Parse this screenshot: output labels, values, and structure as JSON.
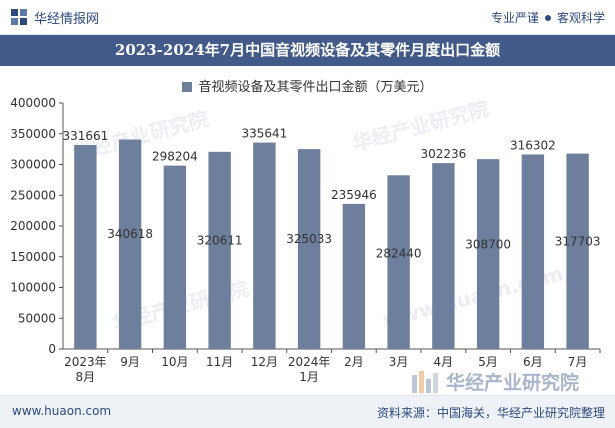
{
  "header": {
    "brand": "华经情报网",
    "tagline_left": "专业严谨",
    "tagline_right": "客观科学"
  },
  "title": "2023-2024年7月中国音视频设备及其零件月度出口金额",
  "footer": {
    "url": "www.huaon.com",
    "source": "资料来源：中国海关，华经产业研究院整理"
  },
  "watermark": {
    "text": "华经产业研究院",
    "subtext": "www.huaon.com"
  },
  "colors": {
    "bar": "#6d7f9c",
    "title_bg": "#415a89",
    "brand": "#2c4a7f"
  },
  "chart_data": {
    "type": "bar",
    "categories": [
      "2023年\n8月",
      "9月",
      "10月",
      "11月",
      "12月",
      "2024年\n1月",
      "2月",
      "3月",
      "4月",
      "5月",
      "6月",
      "7月"
    ],
    "series": [
      {
        "name": "音视频设备及其零件出口金额（万美元）",
        "values": [
          331661,
          340618,
          298204,
          320611,
          335641,
          325033,
          235946,
          282440,
          302236,
          308700,
          316302,
          317703
        ]
      }
    ],
    "ylim": [
      0,
      400000
    ],
    "yticks": [
      "0",
      "50000",
      "100000",
      "150000",
      "200000",
      "250000",
      "300000",
      "350000",
      "400000"
    ],
    "label_positions": [
      "top",
      "inside",
      "top",
      "inside",
      "top",
      "inside",
      "top",
      "inside",
      "top",
      "inside",
      "top",
      "inside"
    ],
    "grid": false,
    "legend": "top-center"
  }
}
